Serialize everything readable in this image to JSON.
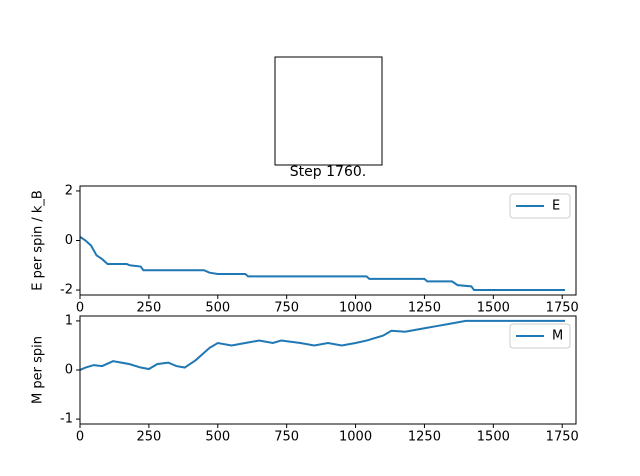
{
  "chart_data": [
    {
      "type": "line",
      "title": "Step 1760.",
      "ylabel": "E per spin / k_B",
      "xlim": [
        0,
        1800
      ],
      "ylim": [
        -2.2,
        2.2
      ],
      "xticks": [
        0,
        250,
        500,
        750,
        1000,
        1250,
        1500,
        1750
      ],
      "yticks": [
        -2,
        0,
        2
      ],
      "legend": "upper right",
      "series": [
        {
          "name": "E",
          "color": "#1f77b4",
          "x": [
            0,
            20,
            40,
            60,
            80,
            100,
            170,
            180,
            220,
            230,
            450,
            470,
            500,
            600,
            610,
            1040,
            1050,
            1250,
            1260,
            1350,
            1370,
            1420,
            1430,
            1760
          ],
          "values": [
            0.15,
            0,
            -0.2,
            -0.6,
            -0.75,
            -0.95,
            -0.95,
            -1.0,
            -1.05,
            -1.2,
            -1.2,
            -1.3,
            -1.35,
            -1.35,
            -1.45,
            -1.45,
            -1.55,
            -1.55,
            -1.65,
            -1.65,
            -1.8,
            -1.85,
            -2.0,
            -2.0
          ]
        }
      ]
    },
    {
      "type": "line",
      "ylabel": "M per spin",
      "xlim": [
        0,
        1800
      ],
      "ylim": [
        -1.1,
        1.1
      ],
      "xticks": [
        0,
        250,
        500,
        750,
        1000,
        1250,
        1500,
        1750
      ],
      "yticks": [
        -1,
        0,
        1
      ],
      "legend": "upper right",
      "series": [
        {
          "name": "M",
          "color": "#1f77b4",
          "x": [
            0,
            20,
            50,
            80,
            120,
            180,
            220,
            250,
            280,
            320,
            350,
            380,
            420,
            470,
            500,
            550,
            600,
            650,
            700,
            730,
            800,
            850,
            900,
            950,
            1000,
            1040,
            1100,
            1130,
            1180,
            1250,
            1300,
            1350,
            1400,
            1760
          ],
          "values": [
            0,
            0.05,
            0.1,
            0.08,
            0.18,
            0.12,
            0.05,
            0.02,
            0.12,
            0.15,
            0.08,
            0.05,
            0.2,
            0.45,
            0.55,
            0.5,
            0.55,
            0.6,
            0.55,
            0.6,
            0.55,
            0.5,
            0.55,
            0.5,
            0.55,
            0.6,
            0.7,
            0.8,
            0.78,
            0.85,
            0.9,
            0.95,
            1.0,
            1.0
          ]
        }
      ]
    }
  ]
}
